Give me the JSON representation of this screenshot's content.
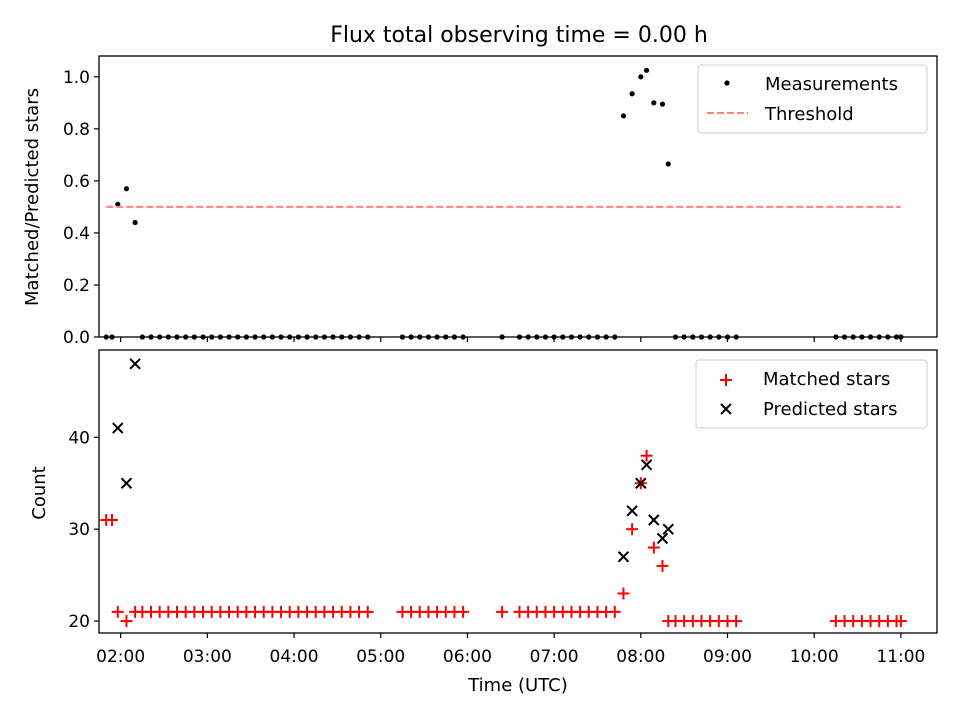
{
  "figure": {
    "title": "Flux total observing time = 0.00 h"
  },
  "colors": {
    "measurement": "#000000",
    "threshold": "#ff7f7f",
    "matched": "#ff0000",
    "predicted": "#000000"
  },
  "chart_data": [
    {
      "type": "scatter",
      "ylabel": "Matched/Predicted stars",
      "xlabel": "",
      "xlim": [
        "01:45",
        "11:25"
      ],
      "ylim": [
        0,
        1.08
      ],
      "y_ticks": [
        0.0,
        0.2,
        0.4,
        0.6,
        0.8,
        1.0
      ],
      "y_tick_labels": [
        "0.0",
        "0.2",
        "0.4",
        "0.6",
        "0.8",
        "1.0"
      ],
      "legend": {
        "placement": "upper right",
        "entries": [
          "Measurements",
          "Threshold"
        ]
      },
      "grid": false,
      "series": [
        {
          "name": "Measurements",
          "marker": "point",
          "x": [
            "01:50",
            "01:54",
            "01:58",
            "02:04",
            "02:10",
            "02:15",
            "02:21",
            "02:27",
            "02:33",
            "02:39",
            "02:45",
            "02:51",
            "02:57",
            "03:03",
            "03:09",
            "03:15",
            "03:21",
            "03:27",
            "03:33",
            "03:39",
            "03:45",
            "03:51",
            "03:57",
            "04:03",
            "04:09",
            "04:15",
            "04:21",
            "04:27",
            "04:33",
            "04:39",
            "04:45",
            "04:51",
            "05:15",
            "05:21",
            "05:27",
            "05:33",
            "05:39",
            "05:45",
            "05:51",
            "05:57",
            "06:24",
            "06:36",
            "06:42",
            "06:48",
            "06:54",
            "07:00",
            "07:06",
            "07:12",
            "07:18",
            "07:24",
            "07:30",
            "07:36",
            "07:42",
            "07:48",
            "07:54",
            "08:00",
            "08:04",
            "08:09",
            "08:15",
            "08:19",
            "08:24",
            "08:30",
            "08:36",
            "08:42",
            "08:48",
            "08:54",
            "09:00",
            "09:06",
            "10:15",
            "10:21",
            "10:27",
            "10:33",
            "10:39",
            "10:45",
            "10:51",
            "10:57",
            "11:00"
          ],
          "y": [
            0,
            0,
            0.51,
            0.57,
            0.44,
            0,
            0,
            0,
            0,
            0,
            0,
            0,
            0,
            0,
            0,
            0,
            0,
            0,
            0,
            0,
            0,
            0,
            0,
            0,
            0,
            0,
            0,
            0,
            0,
            0,
            0,
            0,
            0,
            0,
            0,
            0,
            0,
            0,
            0,
            0,
            0,
            0,
            0,
            0,
            0,
            0,
            0,
            0,
            0,
            0,
            0,
            0,
            0,
            0.85,
            0.935,
            1.0,
            1.025,
            0.9,
            0.895,
            0.665,
            0,
            0,
            0,
            0,
            0,
            0,
            0,
            0,
            0,
            0,
            0,
            0,
            0,
            0,
            0,
            0,
            0
          ]
        },
        {
          "name": "Threshold",
          "style": "dashed",
          "x": [
            "01:50",
            "11:00"
          ],
          "y": [
            0.5,
            0.5
          ]
        }
      ]
    },
    {
      "type": "scatter",
      "ylabel": "Count",
      "xlabel": "Time (UTC)",
      "xlim": [
        "01:45",
        "11:25"
      ],
      "ylim": [
        18.7,
        49.5
      ],
      "y_ticks": [
        20,
        30,
        40
      ],
      "y_tick_labels": [
        "20",
        "30",
        "40"
      ],
      "x_ticks": [
        "02:00",
        "03:00",
        "04:00",
        "05:00",
        "06:00",
        "07:00",
        "08:00",
        "09:00",
        "10:00",
        "11:00"
      ],
      "x_tick_labels": [
        "02:00",
        "03:00",
        "04:00",
        "05:00",
        "06:00",
        "07:00",
        "08:00",
        "09:00",
        "10:00",
        "11:00"
      ],
      "legend": {
        "placement": "upper right",
        "entries": [
          "Matched stars",
          "Predicted stars"
        ]
      },
      "grid": false,
      "series": [
        {
          "name": "Matched stars",
          "marker": "plus",
          "x": [
            "01:50",
            "01:54",
            "01:58",
            "02:04",
            "02:10",
            "02:15",
            "02:21",
            "02:27",
            "02:33",
            "02:39",
            "02:45",
            "02:51",
            "02:57",
            "03:03",
            "03:09",
            "03:15",
            "03:21",
            "03:27",
            "03:33",
            "03:39",
            "03:45",
            "03:51",
            "03:57",
            "04:03",
            "04:09",
            "04:15",
            "04:21",
            "04:27",
            "04:33",
            "04:39",
            "04:45",
            "04:51",
            "05:15",
            "05:21",
            "05:27",
            "05:33",
            "05:39",
            "05:45",
            "05:51",
            "05:57",
            "06:24",
            "06:36",
            "06:42",
            "06:48",
            "06:54",
            "07:00",
            "07:06",
            "07:12",
            "07:18",
            "07:24",
            "07:30",
            "07:36",
            "07:42",
            "07:48",
            "07:54",
            "08:00",
            "08:04",
            "08:09",
            "08:15",
            "08:19",
            "08:24",
            "08:30",
            "08:36",
            "08:42",
            "08:48",
            "08:54",
            "09:00",
            "09:06",
            "10:15",
            "10:21",
            "10:27",
            "10:33",
            "10:39",
            "10:45",
            "10:51",
            "10:57",
            "11:00"
          ],
          "y": [
            31,
            31,
            21,
            20,
            21,
            21,
            21,
            21,
            21,
            21,
            21,
            21,
            21,
            21,
            21,
            21,
            21,
            21,
            21,
            21,
            21,
            21,
            21,
            21,
            21,
            21,
            21,
            21,
            21,
            21,
            21,
            21,
            21,
            21,
            21,
            21,
            21,
            21,
            21,
            21,
            21,
            21,
            21,
            21,
            21,
            21,
            21,
            21,
            21,
            21,
            21,
            21,
            21,
            23,
            30,
            35,
            38,
            28,
            26,
            20,
            20,
            20,
            20,
            20,
            20,
            20,
            20,
            20,
            20,
            20,
            20,
            20,
            20,
            20,
            20,
            20,
            20
          ]
        },
        {
          "name": "Predicted stars",
          "marker": "x",
          "x": [
            "01:58",
            "02:04",
            "02:10",
            "07:48",
            "07:54",
            "08:00",
            "08:04",
            "08:09",
            "08:15",
            "08:19"
          ],
          "y": [
            41,
            35,
            48,
            27,
            32,
            35,
            37,
            31,
            29,
            30
          ]
        }
      ]
    }
  ]
}
